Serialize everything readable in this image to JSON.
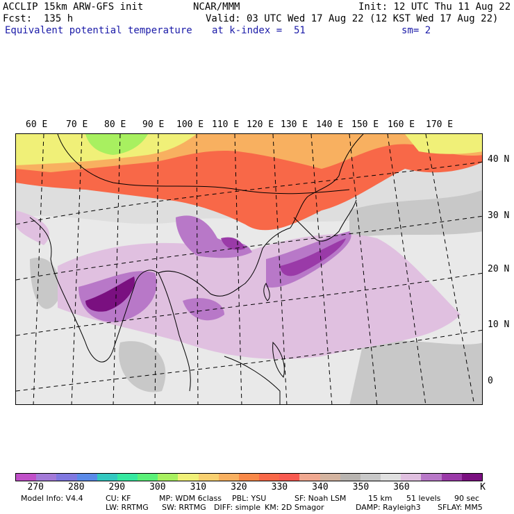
{
  "header": {
    "model": "ACCLIP 15km ARW-GFS init",
    "center": "NCAR/MMM",
    "init": "Init: 12 UTC Thu 11 Aug 22",
    "fcst": "Fcst:  135 h",
    "valid": "Valid: 03 UTC Wed 17 Aug 22 (12 KST Wed 17 Aug 22)",
    "field": "Equivalent potential temperature",
    "level": "at k-index =  51",
    "smooth": "sm= 2"
  },
  "lon_labels": [
    "60 E",
    "70 E",
    "80 E",
    "90 E",
    "100 E",
    "110 E",
    "120 E",
    "130 E",
    "140 E",
    "150 E",
    "160 E",
    "170 E"
  ],
  "lat_labels": [
    "40 N",
    "30 N",
    "20 N",
    "10 N",
    "0"
  ],
  "legend": {
    "colors": [
      "#c050c8",
      "#a37ad8",
      "#8078e0",
      "#5a8ae8",
      "#33c8c0",
      "#35e8a0",
      "#5af078",
      "#a8f060",
      "#f0f078",
      "#f8d070",
      "#f8b060",
      "#f88848",
      "#f86848",
      "#f85a50",
      "#f0a890",
      "#d4b4a0",
      "#b8b4b0",
      "#c8c8c8",
      "#e0e0e0",
      "#e0c0e0",
      "#b878c8",
      "#9a3aa8",
      "#7a1080"
    ],
    "ticks": [
      "270",
      "280",
      "290",
      "300",
      "310",
      "320",
      "330",
      "340",
      "350",
      "360"
    ],
    "unit": "K"
  },
  "info": {
    "line1": [
      "Model Info: V4.4",
      "CU: KF",
      "MP: WDM 6class",
      "PBL: YSU",
      "SF: Noah LSM",
      "15 km",
      "51 levels",
      "90 sec"
    ],
    "line2": [
      "LW: RRTMG",
      "SW: RRTMG",
      "DIFF: simple",
      "KM: 2D Smagor",
      "DAMP: Rayleigh3",
      "SFLAY: MM5"
    ]
  }
}
